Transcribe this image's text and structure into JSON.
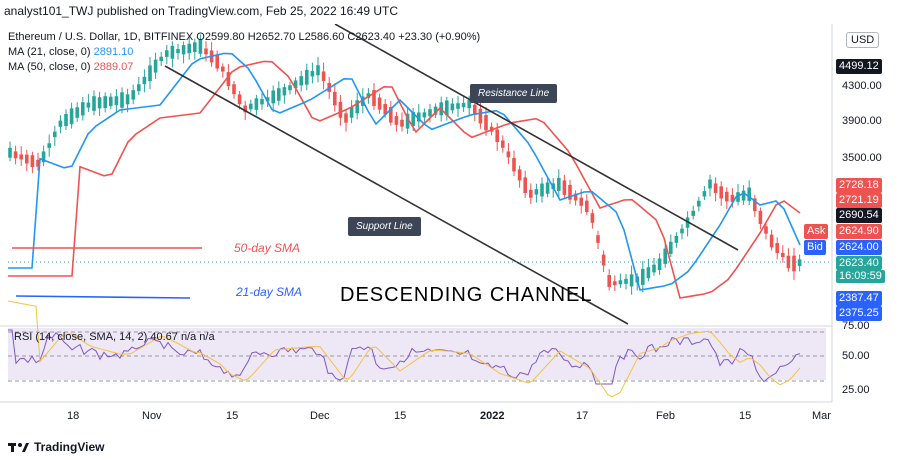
{
  "publisher": "analyst101_TWJ published on TradingView.com, Feb 25, 2022 16:49 UTC",
  "symbol_line": "Ethereum / U.S. Dollar, 1D, BITFINEX",
  "ohlc": {
    "o_label": "O",
    "o": "2599.80",
    "h_label": "H",
    "h": "2652.70",
    "l_label": "L",
    "l": "2586.60",
    "c_label": "C",
    "c": "2623.40",
    "change": "+23.30 (+0.90%)"
  },
  "ma21": {
    "label": "MA (21, close, 0)",
    "value": "2891.10"
  },
  "ma50": {
    "label": "MA (50, close, 0)",
    "value": "2889.07"
  },
  "currency": "USD",
  "price_ticks": [
    "4300.00",
    "3900.00",
    "3500.00",
    "75.00",
    "50.00",
    "25.00"
  ],
  "price_tag_top": "4499.12",
  "right_labels": {
    "p1": "2728.18",
    "p2": "2721.19",
    "p3": "2690.54",
    "ask_label": "Ask",
    "ask": "2624.90",
    "bid_label": "Bid",
    "bid": "2624.00",
    "last": "2623.40",
    "countdown": "16:09:59",
    "low1": "2387.47",
    "low2": "2375.25"
  },
  "x_ticks": [
    "18",
    "Nov",
    "15",
    "Dec",
    "15",
    "2022",
    "17",
    "Feb",
    "15",
    "Mar"
  ],
  "annotations": {
    "resistance": "Resistance Line",
    "support": "Support Line",
    "sma50": "50-day SMA",
    "sma21": "21-day SMA",
    "channel": "DESCENDING CHANNEL"
  },
  "rsi": {
    "label": "RSI (14, close, SMA, 14, 2)",
    "value": "40.67",
    "extra": "n/a  n/a"
  },
  "footer": "TradingView",
  "colors": {
    "up": "#26a69a",
    "down": "#ef5350",
    "ma21": "#2196f3",
    "ma50": "#ef5350",
    "rsi": "#7e57c2",
    "rsi_ma": "#f5c242"
  },
  "chart_data": {
    "type": "candlestick",
    "x": [
      "Oct 12",
      "Oct 18",
      "Nov 1",
      "Nov 15",
      "Dec 1",
      "Dec 15",
      "Jan 1 2022",
      "Jan 17",
      "Feb 1",
      "Feb 15",
      "Feb 25"
    ],
    "close": [
      3600,
      3750,
      4300,
      4600,
      4500,
      4000,
      3700,
      3100,
      2700,
      3100,
      2623.4
    ]
  }
}
